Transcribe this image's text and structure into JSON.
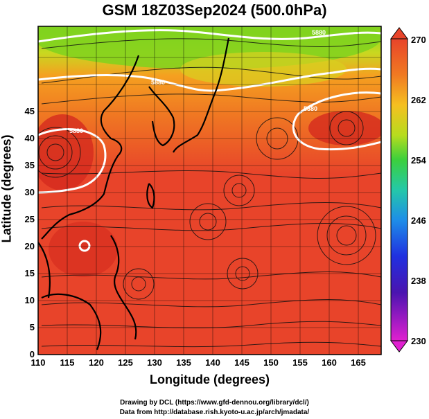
{
  "title": "GSM 18Z03Sep2024 (500.0hPa)",
  "map": {
    "xlabel": "Longitude (degrees)",
    "ylabel": "Latitude  (degrees)",
    "x_ticks": [
      "110",
      "115",
      "120",
      "125",
      "130",
      "135",
      "140",
      "145",
      "150",
      "155",
      "160",
      "165"
    ],
    "y_ticks": [
      "0",
      "5",
      "10",
      "15",
      "20",
      "25",
      "30",
      "35",
      "40",
      "45"
    ],
    "contour_labels": [
      "5880",
      "5880",
      "5880",
      "5880"
    ]
  },
  "colorbar": {
    "ticks": [
      "270",
      "262",
      "254",
      "246",
      "238",
      "230"
    ]
  },
  "credits": {
    "line1": "Drawing by DCL (https://www.gfd-dennou.org/library/dcl/)",
    "line2": "Data from http://database.rish.kyoto-u.ac.jp/arch/jmadata/"
  },
  "colors": {
    "warm": "#e8442a",
    "hot": "#d42a1e",
    "orange": "#f07a22",
    "yellow": "#f5c020",
    "green": "#7fd21e",
    "contour": "#ffffff",
    "coast": "#000000"
  }
}
